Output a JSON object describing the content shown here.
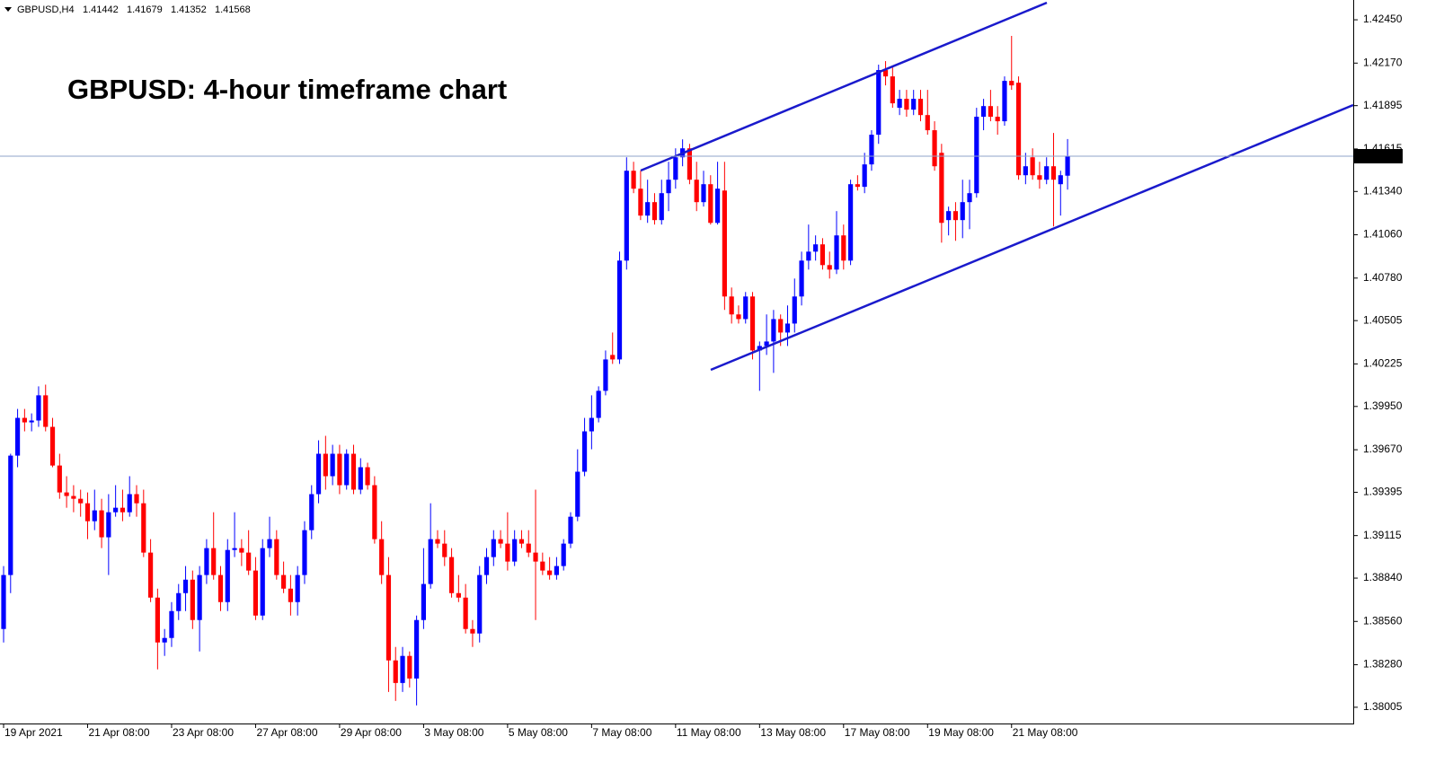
{
  "chart_data": {
    "type": "candlestick",
    "symbol": "GBPUSD,H4",
    "title": "GBPUSD: 4-hour timeframe chart",
    "up_color": "#0000ff",
    "down_color": "#ff0000",
    "price_line_color": "#8fa3c8",
    "ylim": [
      1.379,
      1.42578
    ],
    "yticks": [
      {
        "value": 1.4245,
        "label": "1.42450"
      },
      {
        "value": 1.4217,
        "label": "1.42170"
      },
      {
        "value": 1.41895,
        "label": "1.41895"
      },
      {
        "value": 1.41615,
        "label": "1.41615"
      },
      {
        "value": 1.4134,
        "label": "1.41340"
      },
      {
        "value": 1.4106,
        "label": "1.41060"
      },
      {
        "value": 1.4078,
        "label": "1.40780"
      },
      {
        "value": 1.40505,
        "label": "1.40505"
      },
      {
        "value": 1.40225,
        "label": "1.40225"
      },
      {
        "value": 1.3995,
        "label": "1.39950"
      },
      {
        "value": 1.3967,
        "label": "1.39670"
      },
      {
        "value": 1.39395,
        "label": "1.39395"
      },
      {
        "value": 1.39115,
        "label": "1.39115"
      },
      {
        "value": 1.3884,
        "label": "1.38840"
      },
      {
        "value": 1.3856,
        "label": "1.38560"
      },
      {
        "value": 1.3828,
        "label": "1.38280"
      },
      {
        "value": 1.38005,
        "label": "1.38005"
      }
    ],
    "categories": [
      "19 Apr 2021",
      null,
      null,
      null,
      null,
      null,
      null,
      null,
      null,
      null,
      null,
      null,
      "21 Apr 08:00",
      null,
      null,
      null,
      null,
      null,
      null,
      null,
      null,
      null,
      null,
      null,
      "23 Apr 08:00",
      null,
      null,
      null,
      null,
      null,
      null,
      null,
      null,
      null,
      null,
      null,
      "27 Apr 08:00",
      null,
      null,
      null,
      null,
      null,
      null,
      null,
      null,
      null,
      null,
      null,
      "29 Apr 08:00",
      null,
      null,
      null,
      null,
      null,
      null,
      null,
      null,
      null,
      null,
      null,
      "3 May 08:00",
      null,
      null,
      null,
      null,
      null,
      null,
      null,
      null,
      null,
      null,
      null,
      "5 May 08:00",
      null,
      null,
      null,
      null,
      null,
      null,
      null,
      null,
      null,
      null,
      null,
      "7 May 08:00",
      null,
      null,
      null,
      null,
      null,
      null,
      null,
      null,
      null,
      null,
      null,
      "11 May 08:00",
      null,
      null,
      null,
      null,
      null,
      null,
      null,
      null,
      null,
      null,
      null,
      "13 May 08:00",
      null,
      null,
      null,
      null,
      null,
      null,
      null,
      null,
      null,
      null,
      null,
      "17 May 08:00",
      null,
      null,
      null,
      null,
      null,
      null,
      null,
      null,
      null,
      null,
      null,
      "19 May 08:00",
      null,
      null,
      null,
      null,
      null,
      null,
      null,
      null,
      null,
      null,
      null,
      "21 May 08:00",
      null,
      null,
      null,
      null,
      null,
      null,
      null,
      null
    ],
    "candles": [
      [
        1.38511,
        1.38918,
        1.38424,
        1.3886
      ],
      [
        1.3886,
        1.39644,
        1.38743,
        1.39632
      ],
      [
        1.39632,
        1.39934,
        1.39557,
        1.39876
      ],
      [
        1.39876,
        1.39934,
        1.39789,
        1.39847
      ],
      [
        1.39847,
        1.39905,
        1.39789,
        1.39859
      ],
      [
        1.39859,
        1.4008,
        1.39818,
        1.40022
      ],
      [
        1.40022,
        1.40091,
        1.39789,
        1.39818
      ],
      [
        1.39818,
        1.39876,
        1.39557,
        1.39568
      ],
      [
        1.39568,
        1.39644,
        1.39353,
        1.39394
      ],
      [
        1.39394,
        1.39499,
        1.39295,
        1.39371
      ],
      [
        1.39371,
        1.39441,
        1.39266,
        1.39353
      ],
      [
        1.39353,
        1.39412,
        1.39237,
        1.39324
      ],
      [
        1.39324,
        1.39394,
        1.39092,
        1.39208
      ],
      [
        1.39208,
        1.39412,
        1.3915,
        1.39278
      ],
      [
        1.39278,
        1.39353,
        1.39034,
        1.39104
      ],
      [
        1.39104,
        1.39383,
        1.3886,
        1.39266
      ],
      [
        1.39266,
        1.39441,
        1.39237,
        1.39295
      ],
      [
        1.39295,
        1.39412,
        1.39208,
        1.39266
      ],
      [
        1.39266,
        1.39499,
        1.39237,
        1.39383
      ],
      [
        1.39383,
        1.39441,
        1.39237,
        1.39324
      ],
      [
        1.39324,
        1.39412,
        1.38976,
        1.39005
      ],
      [
        1.39005,
        1.39092,
        1.38685,
        1.38714
      ],
      [
        1.38714,
        1.38772,
        1.3825,
        1.38424
      ],
      [
        1.38424,
        1.38511,
        1.38337,
        1.38453
      ],
      [
        1.38453,
        1.38685,
        1.38395,
        1.38627
      ],
      [
        1.38627,
        1.38802,
        1.38569,
        1.38743
      ],
      [
        1.38743,
        1.38918,
        1.38627,
        1.3883
      ],
      [
        1.3883,
        1.38889,
        1.38511,
        1.38569
      ],
      [
        1.38569,
        1.38918,
        1.38366,
        1.3886
      ],
      [
        1.3886,
        1.39092,
        1.38802,
        1.39034
      ],
      [
        1.39034,
        1.39266,
        1.3883,
        1.3886
      ],
      [
        1.3886,
        1.38918,
        1.38627,
        1.38685
      ],
      [
        1.38685,
        1.39092,
        1.38627,
        1.39022
      ],
      [
        1.39022,
        1.39266,
        1.38976,
        1.39034
      ],
      [
        1.39034,
        1.39092,
        1.38918,
        1.39005
      ],
      [
        1.39005,
        1.3915,
        1.3886,
        1.38889
      ],
      [
        1.38889,
        1.38976,
        1.38569,
        1.38598
      ],
      [
        1.38598,
        1.39092,
        1.38569,
        1.39034
      ],
      [
        1.39034,
        1.39237,
        1.38976,
        1.39092
      ],
      [
        1.39092,
        1.3915,
        1.3883,
        1.3886
      ],
      [
        1.3886,
        1.38947,
        1.38743,
        1.38772
      ],
      [
        1.38772,
        1.3886,
        1.38598,
        1.38685
      ],
      [
        1.38685,
        1.38918,
        1.38598,
        1.3886
      ],
      [
        1.3886,
        1.39208,
        1.38802,
        1.3915
      ],
      [
        1.3915,
        1.39441,
        1.39092,
        1.39383
      ],
      [
        1.39383,
        1.39731,
        1.39324,
        1.39644
      ],
      [
        1.39644,
        1.3976,
        1.39412,
        1.39499
      ],
      [
        1.39499,
        1.39702,
        1.39441,
        1.39644
      ],
      [
        1.39644,
        1.39702,
        1.39383,
        1.39441
      ],
      [
        1.39441,
        1.39673,
        1.39412,
        1.39644
      ],
      [
        1.39644,
        1.39702,
        1.39383,
        1.39412
      ],
      [
        1.39412,
        1.39615,
        1.39383,
        1.39557
      ],
      [
        1.39557,
        1.39586,
        1.39412,
        1.39441
      ],
      [
        1.39441,
        1.39499,
        1.39063,
        1.39092
      ],
      [
        1.39092,
        1.39208,
        1.38802,
        1.3886
      ],
      [
        1.3886,
        1.38976,
        1.38104,
        1.38308
      ],
      [
        1.38308,
        1.38395,
        1.38046,
        1.38162
      ],
      [
        1.38162,
        1.38395,
        1.38104,
        1.38337
      ],
      [
        1.38337,
        1.38366,
        1.38133,
        1.38191
      ],
      [
        1.38191,
        1.38598,
        1.38017,
        1.38569
      ],
      [
        1.38569,
        1.39034,
        1.38511,
        1.38802
      ],
      [
        1.38802,
        1.39324,
        1.38772,
        1.39092
      ],
      [
        1.39092,
        1.3915,
        1.39034,
        1.39063
      ],
      [
        1.39063,
        1.3915,
        1.38918,
        1.38976
      ],
      [
        1.38976,
        1.39034,
        1.38714,
        1.38743
      ],
      [
        1.38743,
        1.3886,
        1.38685,
        1.38714
      ],
      [
        1.38714,
        1.38802,
        1.38482,
        1.38511
      ],
      [
        1.38511,
        1.38569,
        1.38395,
        1.38482
      ],
      [
        1.38482,
        1.38918,
        1.38424,
        1.3886
      ],
      [
        1.3886,
        1.39034,
        1.38802,
        1.38976
      ],
      [
        1.38976,
        1.3915,
        1.38918,
        1.39092
      ],
      [
        1.39092,
        1.3915,
        1.39034,
        1.39063
      ],
      [
        1.39063,
        1.39266,
        1.38889,
        1.38947
      ],
      [
        1.38947,
        1.3915,
        1.38918,
        1.39092
      ],
      [
        1.39092,
        1.3915,
        1.39034,
        1.39063
      ],
      [
        1.39063,
        1.3915,
        1.38976,
        1.39005
      ],
      [
        1.39005,
        1.39412,
        1.38569,
        1.38947
      ],
      [
        1.38947,
        1.39005,
        1.3886,
        1.38889
      ],
      [
        1.38889,
        1.38976,
        1.3883,
        1.3886
      ],
      [
        1.3886,
        1.38976,
        1.3883,
        1.38918
      ],
      [
        1.38918,
        1.39092,
        1.38889,
        1.39063
      ],
      [
        1.39063,
        1.39266,
        1.39034,
        1.39237
      ],
      [
        1.39237,
        1.39673,
        1.39208,
        1.39528
      ],
      [
        1.39528,
        1.39876,
        1.39499,
        1.39789
      ],
      [
        1.39789,
        1.40022,
        1.39673,
        1.39876
      ],
      [
        1.39876,
        1.4008,
        1.39847,
        1.40051
      ],
      [
        1.40051,
        1.40312,
        1.40022,
        1.40254
      ],
      [
        1.40283,
        1.40428,
        1.40225,
        1.40254
      ],
      [
        1.40254,
        1.40951,
        1.40225,
        1.40893
      ],
      [
        1.40893,
        1.41561,
        1.40835,
        1.41474
      ],
      [
        1.41474,
        1.41532,
        1.41329,
        1.41358
      ],
      [
        1.41358,
        1.41474,
        1.41155,
        1.41184
      ],
      [
        1.41184,
        1.41416,
        1.41137,
        1.41271
      ],
      [
        1.41271,
        1.41329,
        1.41126,
        1.41155
      ],
      [
        1.41155,
        1.41416,
        1.41126,
        1.41329
      ],
      [
        1.41329,
        1.41532,
        1.41213,
        1.41416
      ],
      [
        1.41416,
        1.41619,
        1.41358,
        1.41561
      ],
      [
        1.41561,
        1.41677,
        1.41503,
        1.41619
      ],
      [
        1.41619,
        1.41648,
        1.41387,
        1.41416
      ],
      [
        1.41416,
        1.41532,
        1.41213,
        1.41271
      ],
      [
        1.41271,
        1.41474,
        1.41242,
        1.41387
      ],
      [
        1.41387,
        1.41445,
        1.41126,
        1.41137
      ],
      [
        1.41137,
        1.41532,
        1.41126,
        1.41358
      ],
      [
        1.41346,
        1.41532,
        1.40574,
        1.40661
      ],
      [
        1.40661,
        1.40719,
        1.40486,
        1.40545
      ],
      [
        1.40545,
        1.40603,
        1.40486,
        1.40515
      ],
      [
        1.40515,
        1.4069,
        1.40486,
        1.40661
      ],
      [
        1.40661,
        1.4069,
        1.40254,
        1.40312
      ],
      [
        1.40312,
        1.4037,
        1.40051,
        1.40341
      ],
      [
        1.40341,
        1.40545,
        1.40283,
        1.4037
      ],
      [
        1.4037,
        1.40574,
        1.40167,
        1.40515
      ],
      [
        1.40515,
        1.40545,
        1.40341,
        1.40428
      ],
      [
        1.40428,
        1.40603,
        1.40341,
        1.40486
      ],
      [
        1.40486,
        1.40777,
        1.40428,
        1.40661
      ],
      [
        1.40661,
        1.40951,
        1.40603,
        1.40893
      ],
      [
        1.40893,
        1.41126,
        1.40835,
        1.40951
      ],
      [
        1.40951,
        1.41056,
        1.40893,
        1.40998
      ],
      [
        1.40998,
        1.41038,
        1.40835,
        1.40864
      ],
      [
        1.40864,
        1.40951,
        1.40777,
        1.40835
      ],
      [
        1.40835,
        1.41213,
        1.40806,
        1.41056
      ],
      [
        1.41056,
        1.41126,
        1.40835,
        1.40893
      ],
      [
        1.40893,
        1.41416,
        1.40864,
        1.41387
      ],
      [
        1.41387,
        1.41445,
        1.41346,
        1.4137
      ],
      [
        1.4137,
        1.4159,
        1.41329,
        1.41515
      ],
      [
        1.41515,
        1.41736,
        1.41474,
        1.41707
      ],
      [
        1.41707,
        1.4216,
        1.41648,
        1.42125
      ],
      [
        1.42125,
        1.42183,
        1.42026,
        1.42084
      ],
      [
        1.42084,
        1.42142,
        1.41881,
        1.4191
      ],
      [
        1.41881,
        1.41997,
        1.41834,
        1.41939
      ],
      [
        1.41939,
        1.41997,
        1.41823,
        1.41869
      ],
      [
        1.41869,
        1.41997,
        1.41834,
        1.41939
      ],
      [
        1.41939,
        1.41997,
        1.41794,
        1.41834
      ],
      [
        1.41834,
        1.41997,
        1.41707,
        1.41736
      ],
      [
        1.41736,
        1.41794,
        1.41474,
        1.41503
      ],
      [
        1.4159,
        1.41648,
        1.41009,
        1.41137
      ],
      [
        1.41155,
        1.41242,
        1.41056,
        1.41213
      ],
      [
        1.41213,
        1.41271,
        1.41021,
        1.41155
      ],
      [
        1.41155,
        1.41416,
        1.41038,
        1.41271
      ],
      [
        1.41271,
        1.41416,
        1.41096,
        1.41329
      ],
      [
        1.41329,
        1.41881,
        1.413,
        1.41823
      ],
      [
        1.41823,
        1.41939,
        1.41736,
        1.41892
      ],
      [
        1.41892,
        1.41997,
        1.41794,
        1.41823
      ],
      [
        1.41823,
        1.41892,
        1.41707,
        1.41794
      ],
      [
        1.41794,
        1.42084,
        1.41765,
        1.42055
      ],
      [
        1.42055,
        1.42346,
        1.41997,
        1.42026
      ],
      [
        1.42043,
        1.42084,
        1.41416,
        1.41445
      ],
      [
        1.41445,
        1.4159,
        1.41387,
        1.41503
      ],
      [
        1.41561,
        1.41619,
        1.41416,
        1.41445
      ],
      [
        1.41445,
        1.41532,
        1.41358,
        1.41416
      ],
      [
        1.41416,
        1.41561,
        1.41387,
        1.41503
      ],
      [
        1.41503,
        1.41718,
        1.41114,
        1.41416
      ],
      [
        1.41387,
        1.41474,
        1.41184,
        1.41445
      ],
      [
        1.41442,
        1.41679,
        1.41352,
        1.41568
      ]
    ]
  }
}
